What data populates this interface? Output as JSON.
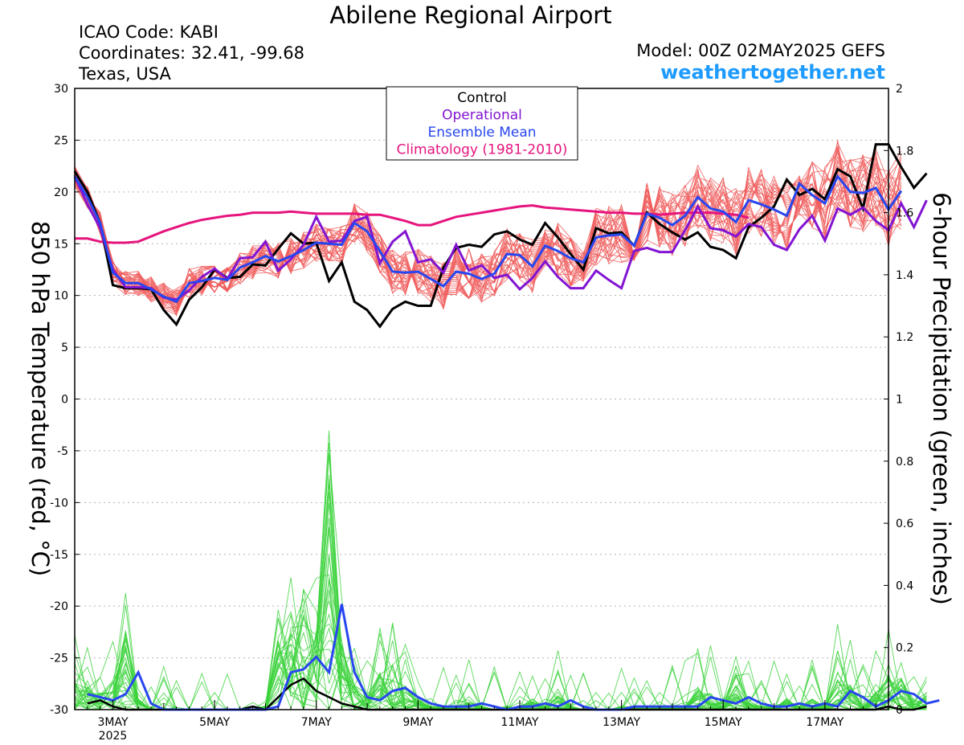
{
  "header": {
    "title": "Abilene Regional Airport",
    "icao": "ICAO Code: KABI",
    "coordinates": "Coordinates: 32.41, -99.68",
    "region": "Texas, USA",
    "model": "Model: 00Z 02MAY2025 GEFS",
    "website": "weathertogether.net"
  },
  "colors": {
    "members_temp": "#F05A5A",
    "members_precip": "#3CD23C",
    "control": "#000000",
    "operational": "#8214D2",
    "ensemble_mean": "#2846F0",
    "climatology": "#E6147D",
    "website": "#1E9BFF"
  },
  "chart_data": {
    "type": "line",
    "x_unit": "hours after 00Z 02MAY2025 (6-hourly)",
    "x_range": [
      6,
      390
    ],
    "x_ticks": [
      {
        "hour": 24,
        "label": "3MAY",
        "sublabel": "2025"
      },
      {
        "hour": 72,
        "label": "5MAY"
      },
      {
        "hour": 120,
        "label": "7MAY"
      },
      {
        "hour": 168,
        "label": "9MAY"
      },
      {
        "hour": 216,
        "label": "11MAY"
      },
      {
        "hour": 264,
        "label": "13MAY"
      },
      {
        "hour": 312,
        "label": "15MAY"
      },
      {
        "hour": 360,
        "label": "17MAY"
      }
    ],
    "y_left": {
      "label": "850 hPa Temperature (red, °C)",
      "range": [
        -30,
        30
      ],
      "ticks": [
        30,
        25,
        20,
        15,
        10,
        5,
        0,
        -5,
        -10,
        -15,
        -20,
        -25,
        -30
      ]
    },
    "y_right": {
      "label": "6-hour Precipitation (green, inches)",
      "range": [
        0,
        2
      ],
      "ticks": [
        2,
        1.8,
        1.6,
        1.4,
        1.2,
        1,
        0.8,
        0.6,
        0.4,
        0.2,
        0
      ]
    },
    "grid": "horizontal dotted",
    "legend": {
      "placement": "top-center",
      "entries": [
        {
          "name": "Control",
          "color": "#000000"
        },
        {
          "name": "Operational",
          "color": "#8214D2"
        },
        {
          "name": "Ensemble Mean",
          "color": "#2846F0"
        },
        {
          "name": "Climatology (1981-2010)",
          "color": "#E6147D"
        }
      ]
    },
    "temperature": {
      "control": [
        22,
        20,
        17,
        11,
        10.7,
        10.7,
        10.6,
        8.6,
        7.2,
        9.6,
        10.8,
        12.5,
        11.7,
        11.8,
        13,
        12.9,
        14.5,
        16,
        15,
        15.1,
        11.4,
        13.2,
        9.4,
        8.6,
        7,
        8.7,
        9.4,
        9,
        9,
        12.7,
        14.6,
        14.9,
        14.7,
        15.9,
        16.2,
        15.4,
        14.9,
        17,
        15.6,
        14,
        12.5,
        16.5,
        16,
        16.1,
        14.8,
        18,
        16.9,
        16.1,
        15.4,
        16.1,
        14.7,
        14.4,
        13.6,
        16.6,
        17.5,
        18.6,
        21.2,
        19.7,
        20.3,
        19.3,
        22.2,
        21.5,
        18.4,
        24.6,
        24.6,
        22.4,
        20.4,
        21.8
      ],
      "operational": [
        21.5,
        18.8,
        16.5,
        12.5,
        10.8,
        10.8,
        10.7,
        9.8,
        9.6,
        10.5,
        11.8,
        12.6,
        11.6,
        13.6,
        13.7,
        15.2,
        12.4,
        13.5,
        14.9,
        17.6,
        15.2,
        15.3,
        17.2,
        17.6,
        13.1,
        15.2,
        16.2,
        13.2,
        13.5,
        12.2,
        14.9,
        12.4,
        12.9,
        11.7,
        12,
        10.6,
        11.7,
        13.3,
        11.8,
        10.7,
        10.7,
        12.4,
        11.5,
        10.7,
        14.3,
        14.6,
        14.2,
        14.2,
        16.3,
        18.6,
        16.5,
        16.3,
        15.7,
        16.9,
        16.6,
        14.9,
        14.4,
        16.4,
        17.7,
        15.3,
        18.4,
        17.8,
        18.5,
        17.2,
        16.3,
        18.9,
        16.6,
        19.2
      ],
      "ensemble_mean": [
        21.5,
        19.5,
        17,
        12.2,
        11.2,
        11.2,
        10.6,
        9.9,
        9.4,
        11.2,
        11.4,
        11.7,
        11.5,
        12.7,
        13.2,
        13.8,
        13.3,
        13.8,
        14.4,
        15.1,
        15,
        14.9,
        17,
        16.2,
        14.3,
        12.3,
        12.2,
        12.3,
        11.6,
        10.9,
        12.3,
        12.1,
        11.6,
        12.1,
        14,
        13.9,
        12.8,
        14.8,
        14.3,
        13.6,
        13.2,
        15.6,
        15.8,
        15.9,
        14.8,
        17.9,
        17.5,
        16.8,
        17.7,
        19.5,
        18.4,
        18.1,
        17.1,
        19.2,
        18.8,
        18.3,
        17.7,
        20.8,
        19.7,
        18.9,
        21.5,
        20,
        19.9,
        20.4,
        18.3,
        20.1
      ],
      "climatology": [
        15.5,
        15.5,
        15.2,
        15.1,
        15.1,
        15.2,
        15.7,
        16.2,
        16.6,
        17,
        17.3,
        17.5,
        17.7,
        17.8,
        18,
        18,
        18,
        18.1,
        18,
        17.9,
        17.9,
        17.9,
        17.9,
        17.8,
        17.8,
        17.5,
        17.2,
        16.8,
        16.8,
        17.2,
        17.6,
        17.8,
        18,
        18.2,
        18.4,
        18.6,
        18.7,
        18.5,
        18.4,
        18.3,
        18.2,
        18.1,
        18,
        18,
        17.9,
        17.9,
        17.8,
        17.9,
        18,
        18,
        18,
        17.9,
        17.8,
        17.5
      ]
    },
    "precipitation": {
      "control": [
        0.02,
        0.03,
        0.01,
        0,
        0,
        0,
        0,
        0,
        0,
        0,
        0,
        0,
        0,
        0.01,
        0,
        0.04,
        0.08,
        0.1,
        0.06,
        0.04,
        0.02,
        0.01,
        0,
        0,
        0,
        0,
        0,
        0,
        0,
        0,
        0,
        0,
        0,
        0,
        0,
        0,
        0,
        0,
        0,
        0,
        0,
        0,
        0,
        0,
        0,
        0,
        0,
        0,
        0,
        0,
        0,
        0,
        0,
        0,
        0,
        0,
        0,
        0,
        0,
        0,
        0,
        0,
        0,
        0.01,
        0,
        0,
        0.01
      ],
      "ensemble_mean": [
        0.05,
        0.04,
        0.03,
        0.05,
        0.12,
        0.02,
        0,
        0,
        0,
        0,
        0,
        0,
        0,
        0,
        0,
        0.01,
        0.12,
        0.13,
        0.17,
        0.12,
        0.34,
        0.12,
        0.04,
        0.03,
        0.06,
        0.07,
        0.04,
        0.02,
        0.01,
        0.01,
        0.01,
        0.02,
        0.01,
        0,
        0.01,
        0.01,
        0.02,
        0.01,
        0.03,
        0.01,
        0,
        0,
        0,
        0.01,
        0.01,
        0.01,
        0.01,
        0.01,
        0.01,
        0.04,
        0.03,
        0.02,
        0.04,
        0.02,
        0.01,
        0.01,
        0.02,
        0.01,
        0.02,
        0.01,
        0.06,
        0.04,
        0.01,
        0.03,
        0.06,
        0.05,
        0.02,
        0.03
      ]
    }
  }
}
